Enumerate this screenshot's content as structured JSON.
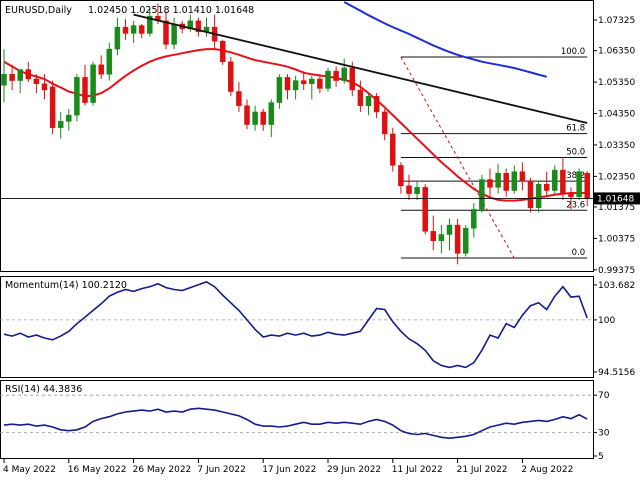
{
  "header": {
    "symbol": "EURUSD,Daily",
    "ohlc": "1.02450 1.02518 1.01410 1.01648"
  },
  "colors": {
    "background": "#ffffff",
    "candle_up": "#1a8a1a",
    "candle_down": "#dd1111",
    "sma20": "#e8111a",
    "sma100": "#1f2ed8",
    "trendline": "#111111",
    "fibonacci": "#111111",
    "indicator_line": "#151c8c",
    "price_tag_bg": "#000000"
  },
  "chart_data": [
    {
      "type": "candlestick",
      "title": "EURUSD,Daily",
      "price_axis": {
        "ylim": [
          0.9937,
          1.079
        ],
        "ticks": [
          "1.07325",
          "1.06350",
          "1.05350",
          "1.04350",
          "1.03350",
          "1.02350",
          "1.01375",
          "1.00375",
          "0.99375"
        ]
      },
      "current_price_label": "1.01648",
      "current_price": 1.01648,
      "time_axis_ticks": [
        "4 May 2022",
        "16 May 2022",
        "26 May 2022",
        "7 Jun 2022",
        "17 Jun 2022",
        "29 Jun 2022",
        "11 Jul 2022",
        "21 Jul 2022",
        "2 Aug 2022"
      ],
      "candles": [
        {
          "o": 1.0525,
          "h": 1.064,
          "l": 1.047,
          "c": 1.056
        },
        {
          "o": 1.056,
          "h": 1.059,
          "l": 1.051,
          "c": 1.054
        },
        {
          "o": 1.054,
          "h": 1.057,
          "l": 1.05,
          "c": 1.0575
        },
        {
          "o": 1.0575,
          "h": 1.06,
          "l": 1.0535,
          "c": 1.0545
        },
        {
          "o": 1.0545,
          "h": 1.056,
          "l": 1.05,
          "c": 1.053
        },
        {
          "o": 1.053,
          "h": 1.056,
          "l": 1.048,
          "c": 1.051
        },
        {
          "o": 1.052,
          "h": 1.054,
          "l": 1.037,
          "c": 1.039
        },
        {
          "o": 1.039,
          "h": 1.044,
          "l": 1.0355,
          "c": 1.041
        },
        {
          "o": 1.041,
          "h": 1.045,
          "l": 1.038,
          "c": 1.043
        },
        {
          "o": 1.043,
          "h": 1.056,
          "l": 1.041,
          "c": 1.055
        },
        {
          "o": 1.055,
          "h": 1.059,
          "l": 1.046,
          "c": 1.047
        },
        {
          "o": 1.047,
          "h": 1.06,
          "l": 1.046,
          "c": 1.059
        },
        {
          "o": 1.059,
          "h": 1.062,
          "l": 1.0545,
          "c": 1.056
        },
        {
          "o": 1.056,
          "h": 1.066,
          "l": 1.054,
          "c": 1.064
        },
        {
          "o": 1.064,
          "h": 1.074,
          "l": 1.062,
          "c": 1.071
        },
        {
          "o": 1.071,
          "h": 1.0735,
          "l": 1.067,
          "c": 1.069
        },
        {
          "o": 1.069,
          "h": 1.073,
          "l": 1.066,
          "c": 1.0715
        },
        {
          "o": 1.0715,
          "h": 1.072,
          "l": 1.0675,
          "c": 1.069
        },
        {
          "o": 1.069,
          "h": 1.077,
          "l": 1.068,
          "c": 1.0745
        },
        {
          "o": 1.0745,
          "h": 1.0785,
          "l": 1.072,
          "c": 1.073
        },
        {
          "o": 1.073,
          "h": 1.076,
          "l": 1.064,
          "c": 1.0655
        },
        {
          "o": 1.0655,
          "h": 1.074,
          "l": 1.064,
          "c": 1.072
        },
        {
          "o": 1.072,
          "h": 1.073,
          "l": 1.069,
          "c": 1.0705
        },
        {
          "o": 1.0705,
          "h": 1.075,
          "l": 1.0695,
          "c": 1.073
        },
        {
          "o": 1.073,
          "h": 1.074,
          "l": 1.068,
          "c": 1.0695
        },
        {
          "o": 1.0695,
          "h": 1.074,
          "l": 1.068,
          "c": 1.071
        },
        {
          "o": 1.071,
          "h": 1.075,
          "l": 1.064,
          "c": 1.0665
        },
        {
          "o": 1.0665,
          "h": 1.067,
          "l": 1.059,
          "c": 1.06
        },
        {
          "o": 1.06,
          "h": 1.0615,
          "l": 1.049,
          "c": 1.0505
        },
        {
          "o": 1.0505,
          "h": 1.0535,
          "l": 1.044,
          "c": 1.046
        },
        {
          "o": 1.046,
          "h": 1.048,
          "l": 1.0385,
          "c": 1.04
        },
        {
          "o": 1.04,
          "h": 1.046,
          "l": 1.038,
          "c": 1.044
        },
        {
          "o": 1.044,
          "h": 1.045,
          "l": 1.038,
          "c": 1.04
        },
        {
          "o": 1.04,
          "h": 1.048,
          "l": 1.036,
          "c": 1.047
        },
        {
          "o": 1.047,
          "h": 1.056,
          "l": 1.045,
          "c": 1.055
        },
        {
          "o": 1.055,
          "h": 1.056,
          "l": 1.048,
          "c": 1.051
        },
        {
          "o": 1.051,
          "h": 1.0555,
          "l": 1.048,
          "c": 1.054
        },
        {
          "o": 1.054,
          "h": 1.057,
          "l": 1.051,
          "c": 1.053
        },
        {
          "o": 1.053,
          "h": 1.0555,
          "l": 1.048,
          "c": 1.0545
        },
        {
          "o": 1.0545,
          "h": 1.056,
          "l": 1.05,
          "c": 1.0515
        },
        {
          "o": 1.0515,
          "h": 1.058,
          "l": 1.0505,
          "c": 1.057
        },
        {
          "o": 1.057,
          "h": 1.0585,
          "l": 1.052,
          "c": 1.054
        },
        {
          "o": 1.054,
          "h": 1.061,
          "l": 1.053,
          "c": 1.058
        },
        {
          "o": 1.058,
          "h": 1.06,
          "l": 1.049,
          "c": 1.051
        },
        {
          "o": 1.051,
          "h": 1.054,
          "l": 1.044,
          "c": 1.046
        },
        {
          "o": 1.046,
          "h": 1.05,
          "l": 1.043,
          "c": 1.049
        },
        {
          "o": 1.049,
          "h": 1.05,
          "l": 1.042,
          "c": 1.044
        },
        {
          "o": 1.044,
          "h": 1.045,
          "l": 1.035,
          "c": 1.037
        },
        {
          "o": 1.037,
          "h": 1.039,
          "l": 1.025,
          "c": 1.027
        },
        {
          "o": 1.027,
          "h": 1.028,
          "l": 1.018,
          "c": 1.0205
        },
        {
          "o": 1.0205,
          "h": 1.024,
          "l": 1.016,
          "c": 1.018
        },
        {
          "o": 1.018,
          "h": 1.022,
          "l": 1.016,
          "c": 1.02
        },
        {
          "o": 1.02,
          "h": 1.021,
          "l": 1.005,
          "c": 1.006
        },
        {
          "o": 1.006,
          "h": 1.011,
          "l": 1.0,
          "c": 1.003
        },
        {
          "o": 1.003,
          "h": 1.008,
          "l": 0.999,
          "c": 1.005
        },
        {
          "o": 1.005,
          "h": 1.01,
          "l": 1.0,
          "c": 1.008
        },
        {
          "o": 1.008,
          "h": 1.01,
          "l": 0.9955,
          "c": 0.999
        },
        {
          "o": 0.999,
          "h": 1.008,
          "l": 0.998,
          "c": 1.007
        },
        {
          "o": 1.007,
          "h": 1.015,
          "l": 1.004,
          "c": 1.013
        },
        {
          "o": 1.013,
          "h": 1.024,
          "l": 1.012,
          "c": 1.0225
        },
        {
          "o": 1.0225,
          "h": 1.026,
          "l": 1.017,
          "c": 1.02
        },
        {
          "o": 1.02,
          "h": 1.0275,
          "l": 1.018,
          "c": 1.0245
        },
        {
          "o": 1.0245,
          "h": 1.026,
          "l": 1.017,
          "c": 1.019
        },
        {
          "o": 1.019,
          "h": 1.027,
          "l": 1.018,
          "c": 1.025
        },
        {
          "o": 1.025,
          "h": 1.028,
          "l": 1.019,
          "c": 1.022
        },
        {
          "o": 1.022,
          "h": 1.023,
          "l": 1.012,
          "c": 1.0135
        },
        {
          "o": 1.0135,
          "h": 1.022,
          "l": 1.012,
          "c": 1.021
        },
        {
          "o": 1.021,
          "h": 1.025,
          "l": 1.017,
          "c": 1.019
        },
        {
          "o": 1.019,
          "h": 1.027,
          "l": 1.018,
          "c": 1.0255
        },
        {
          "o": 1.0255,
          "h": 1.0295,
          "l": 1.016,
          "c": 1.018
        },
        {
          "o": 1.018,
          "h": 1.02,
          "l": 1.013,
          "c": 1.017
        },
        {
          "o": 1.017,
          "h": 1.026,
          "l": 1.016,
          "c": 1.025
        },
        {
          "o": 1.0245,
          "h": 1.0252,
          "l": 1.0141,
          "c": 1.0165
        }
      ],
      "series": [
        {
          "name": "SMA20",
          "values": [
            1.06,
            1.0585,
            1.057,
            1.056,
            1.0553,
            1.0545,
            1.053,
            1.0518,
            1.0505,
            1.0498,
            1.049,
            1.0492,
            1.05,
            1.0515,
            1.0535,
            1.0555,
            1.0572,
            1.0587,
            1.06,
            1.061,
            1.0617,
            1.0622,
            1.0627,
            1.0632,
            1.0637,
            1.064,
            1.064,
            1.0636,
            1.063,
            1.0622,
            1.0613,
            1.0605,
            1.06,
            1.0595,
            1.059,
            1.0584,
            1.0575,
            1.0565,
            1.056,
            1.0556,
            1.0553,
            1.0548,
            1.0542,
            1.0535,
            1.052,
            1.05,
            1.0478,
            1.0455,
            1.043,
            1.0405,
            1.038,
            1.0355,
            1.033,
            1.0305,
            1.028,
            1.0258,
            1.0235,
            1.0215,
            1.0195,
            1.018,
            1.0168,
            1.016,
            1.0158,
            1.0158,
            1.016,
            1.0164,
            1.0168,
            1.0172,
            1.0177,
            1.018,
            1.0182,
            1.0182,
            1.0182
          ]
        },
        {
          "name": "SMA100",
          "values": [
            null,
            null,
            null,
            null,
            null,
            null,
            null,
            null,
            null,
            null,
            null,
            null,
            null,
            null,
            null,
            null,
            null,
            null,
            null,
            null,
            null,
            null,
            null,
            null,
            null,
            null,
            null,
            null,
            null,
            null,
            null,
            null,
            null,
            null,
            null,
            null,
            null,
            null,
            null,
            null,
            null,
            null,
            1.079,
            1.0776,
            1.0762,
            1.0748,
            1.0735,
            1.0722,
            1.071,
            1.0699,
            1.0688,
            1.0676,
            1.0664,
            1.0652,
            1.0641,
            1.0631,
            1.0622,
            1.0614,
            1.0607,
            1.06,
            1.0595,
            1.059,
            1.0585,
            1.058,
            1.0573,
            1.0566,
            1.0559,
            1.0552,
            null,
            null,
            null,
            null,
            null
          ]
        }
      ],
      "trendline": {
        "from": {
          "bar": 16,
          "price": 1.075
        },
        "to": {
          "bar": 72,
          "price": 1.0405
        }
      },
      "fibonacci": {
        "from_bar": 49,
        "to_bar": 72,
        "levels": [
          {
            "label": "100.0",
            "price": 1.0615
          },
          {
            "label": "61.8",
            "price": 1.0371
          },
          {
            "label": "50.0",
            "price": 1.0295
          },
          {
            "label": "38.2",
            "price": 1.022
          },
          {
            "label": "23.6",
            "price": 1.0127
          },
          {
            "label": "0.0",
            "price": 0.9975
          }
        ],
        "diagonal": {
          "from": {
            "bar": 49,
            "price": 1.0615
          },
          "to": {
            "bar": 63,
            "price": 0.9975
          }
        }
      }
    },
    {
      "type": "line",
      "title": "Momentum(14) 100.2120",
      "ylim": [
        94.2,
        104.2
      ],
      "ticks": [
        "103.682",
        "100",
        "94.5156"
      ],
      "reference_level": 100,
      "values": [
        98.5,
        98.3,
        98.6,
        98.2,
        98.4,
        98.1,
        97.9,
        98.3,
        98.8,
        99.6,
        100.3,
        101.0,
        101.7,
        102.5,
        102.9,
        103.2,
        103.0,
        103.3,
        103.5,
        103.8,
        103.4,
        103.2,
        103.1,
        103.4,
        103.7,
        104.0,
        103.5,
        102.6,
        101.8,
        101.0,
        100.0,
        99.0,
        98.2,
        98.4,
        98.3,
        98.6,
        98.4,
        98.6,
        98.3,
        98.4,
        98.7,
        98.5,
        98.4,
        98.6,
        98.8,
        100.0,
        101.2,
        101.1,
        99.8,
        98.8,
        98.0,
        97.5,
        96.8,
        95.7,
        95.2,
        95.0,
        95.2,
        95.0,
        95.5,
        96.8,
        98.4,
        98.1,
        99.6,
        99.2,
        100.5,
        101.5,
        101.8,
        101.1,
        102.5,
        103.5,
        102.4,
        102.5,
        100.2
      ]
    },
    {
      "type": "line",
      "title": "RSI(14) 44.3836",
      "ylim": [
        5,
        83
      ],
      "ticks": [
        "70",
        "30",
        "5"
      ],
      "reference_levels": [
        70,
        30
      ],
      "values": [
        38,
        39,
        38,
        39,
        37,
        38,
        36,
        33,
        32,
        33,
        36,
        42,
        45,
        47,
        50,
        52,
        53,
        54,
        53,
        55,
        52,
        53,
        52,
        55,
        56,
        55,
        54,
        52,
        50,
        48,
        44,
        39,
        37,
        37,
        36,
        37,
        39,
        41,
        39,
        39,
        41,
        40,
        41,
        40,
        39,
        42,
        44,
        42,
        38,
        32,
        29,
        28,
        29,
        27,
        25,
        24,
        25,
        26,
        28,
        32,
        36,
        38,
        40,
        39,
        41,
        42,
        43,
        42,
        44,
        47,
        45,
        49,
        44.4
      ]
    }
  ]
}
